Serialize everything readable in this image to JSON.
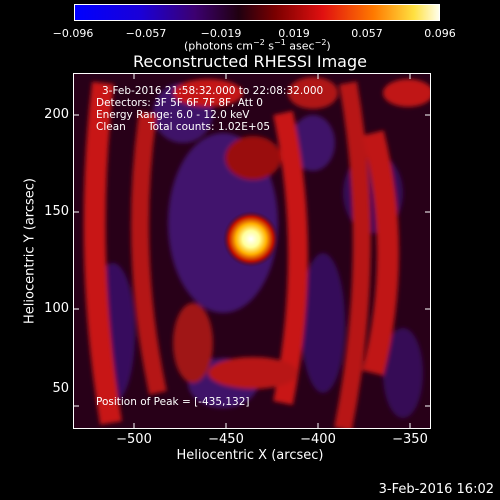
{
  "colorbar": {
    "ticks": [
      "−0.096",
      "−0.057",
      "−0.019",
      "0.019",
      "0.057",
      "0.096"
    ],
    "units_prefix": "(photons cm",
    "units_exp1": "−2",
    "units_mid": " s",
    "units_exp2": "−1",
    "units_mid2": " asec",
    "units_exp3": "−2",
    "units_suffix": ")"
  },
  "plot": {
    "title": "Reconstructed RHESSI Image",
    "ylabel": "Heliocentric Y (arcsec)",
    "xlabel": "Heliocentric X (arcsec)",
    "yticks": [
      "200",
      "150",
      "100",
      "50"
    ],
    "xticks": [
      "−500",
      "−450",
      "−400",
      "−350"
    ]
  },
  "annotation": {
    "time_range": "3-Feb-2016 21:58:32.000 to 22:08:32.000",
    "detectors": "Detectors: 3F 5F 6F 7F 8F, Att 0",
    "energy": "Energy Range: 6.0 - 12.0 keV",
    "method": "Clean",
    "counts": "Total counts: 1.02E+05",
    "peak": "Position of Peak = [-435,132]"
  },
  "footer": {
    "timestamp": "3-Feb-2016 16:02"
  }
}
